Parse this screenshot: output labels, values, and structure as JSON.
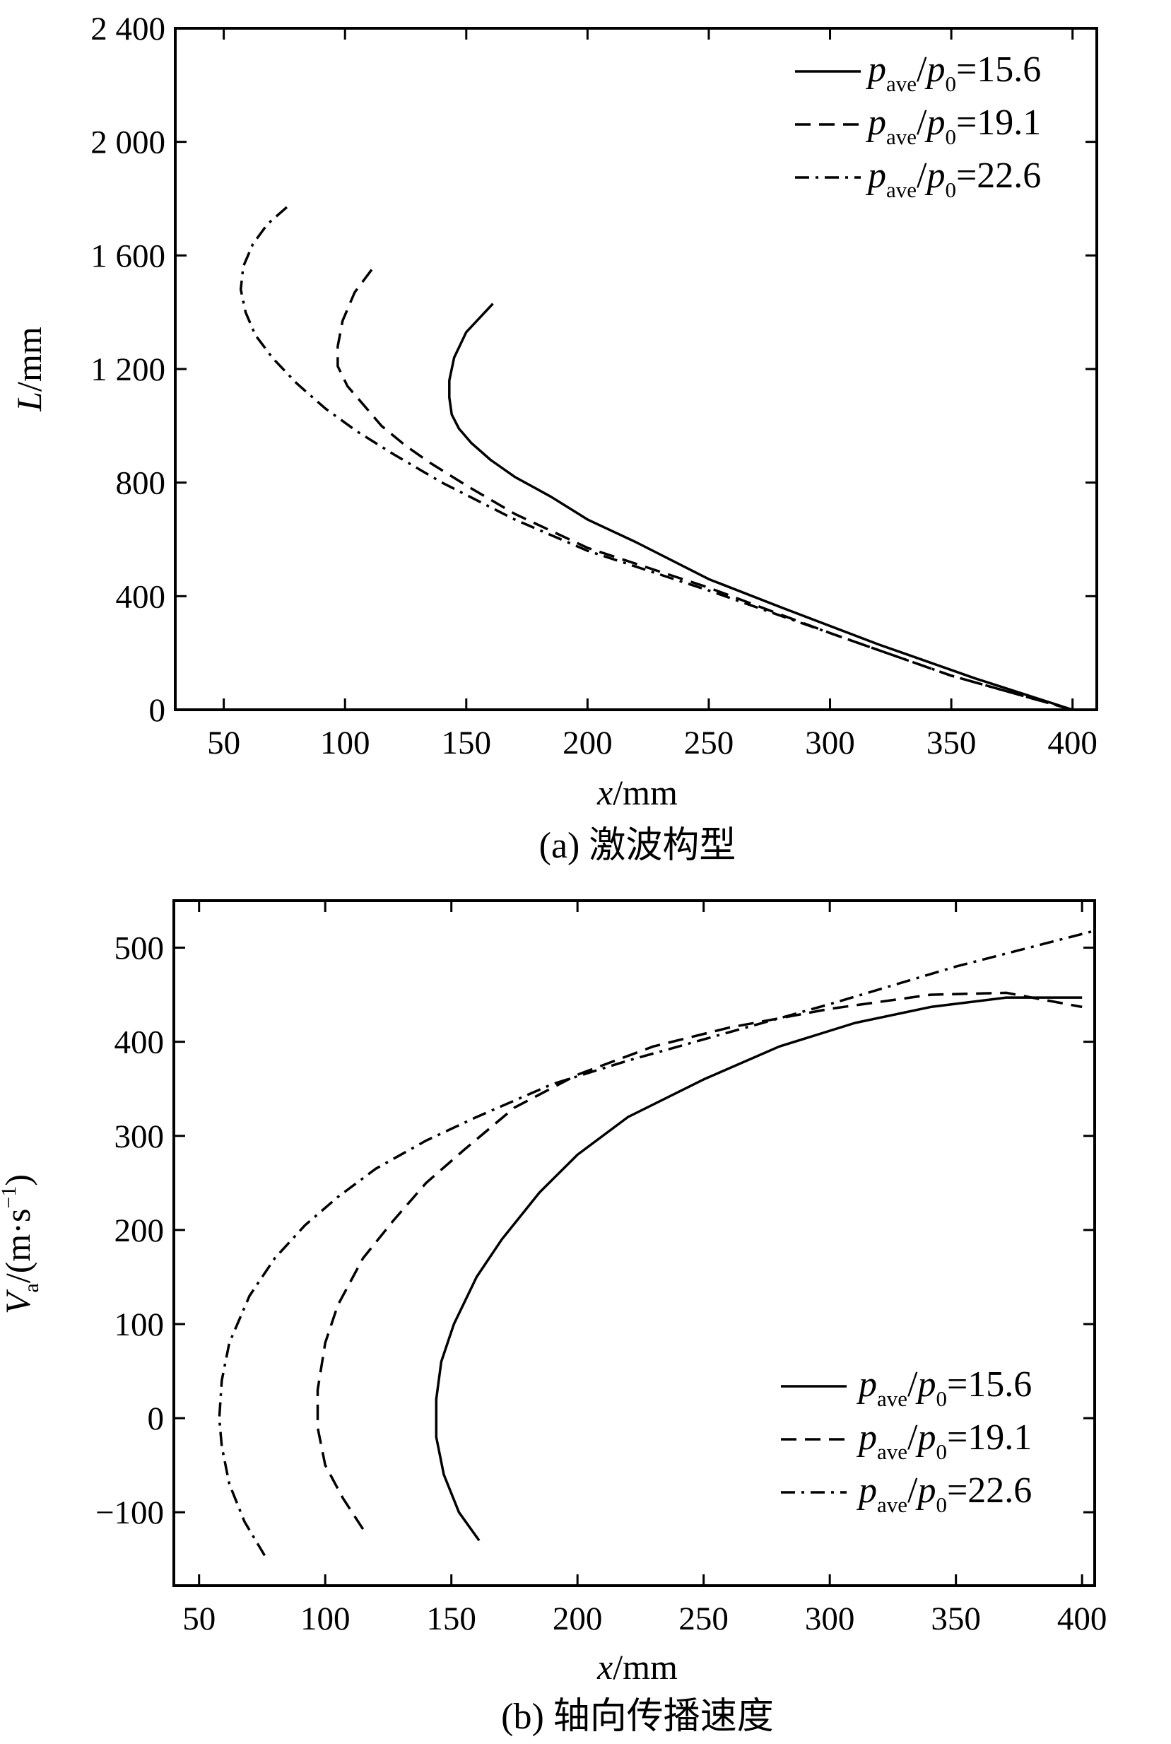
{
  "chart_data": [
    {
      "id": "a",
      "type": "line",
      "caption": "(a) 激波构型",
      "xlabel": "x/mm",
      "ylabel": "L/mm",
      "xlim": [
        30,
        410
      ],
      "ylim": [
        0,
        2400
      ],
      "x_ticks": [
        50,
        100,
        150,
        200,
        250,
        300,
        350,
        400
      ],
      "y_ticks": [
        0,
        400,
        800,
        1200,
        1600,
        2000,
        2400
      ],
      "y_tick_labels": [
        "0",
        "400",
        "800",
        "1 200",
        "1 600",
        "2 000",
        "2 400"
      ],
      "legend_position": "top-right",
      "series": [
        {
          "name": "p_ave/p_0=15.6",
          "label_parts": {
            "p1": "p",
            "sub1": "ave",
            "slash": "/",
            "p2": "p",
            "sub2": "0",
            "value": "=15.6"
          },
          "style": "solid",
          "points": [
            [
              161,
              1430
            ],
            [
              150,
              1330
            ],
            [
              145,
              1240
            ],
            [
              143,
              1160
            ],
            [
              143,
              1100
            ],
            [
              144,
              1040
            ],
            [
              147,
              990
            ],
            [
              152,
              940
            ],
            [
              160,
              880
            ],
            [
              170,
              820
            ],
            [
              185,
              750
            ],
            [
              200,
              670
            ],
            [
              220,
              590
            ],
            [
              250,
              460
            ],
            [
              280,
              360
            ],
            [
              320,
              230
            ],
            [
              360,
              110
            ],
            [
              400,
              0
            ]
          ]
        },
        {
          "name": "p_ave/p_0=19.1",
          "label_parts": {
            "p1": "p",
            "sub1": "ave",
            "slash": "/",
            "p2": "p",
            "sub2": "0",
            "value": "=19.1"
          },
          "style": "dashed",
          "points": [
            [
              111,
              1550
            ],
            [
              104,
              1470
            ],
            [
              99,
              1370
            ],
            [
              97,
              1280
            ],
            [
              97,
              1210
            ],
            [
              101,
              1140
            ],
            [
              108,
              1070
            ],
            [
              115,
              1000
            ],
            [
              125,
              930
            ],
            [
              135,
              870
            ],
            [
              150,
              790
            ],
            [
              170,
              690
            ],
            [
              200,
              570
            ],
            [
              250,
              430
            ],
            [
              300,
              270
            ],
            [
              350,
              120
            ],
            [
              400,
              0
            ]
          ]
        },
        {
          "name": "p_ave/p_0=22.6",
          "label_parts": {
            "p1": "p",
            "sub1": "ave",
            "slash": "/",
            "p2": "p",
            "sub2": "0",
            "value": "=22.6"
          },
          "style": "dashdot",
          "points": [
            [
              76,
              1770
            ],
            [
              68,
              1710
            ],
            [
              62,
              1640
            ],
            [
              58,
              1560
            ],
            [
              57,
              1480
            ],
            [
              59,
              1400
            ],
            [
              63,
              1320
            ],
            [
              70,
              1240
            ],
            [
              80,
              1150
            ],
            [
              92,
              1060
            ],
            [
              105,
              980
            ],
            [
              120,
              900
            ],
            [
              140,
              800
            ],
            [
              170,
              670
            ],
            [
              200,
              560
            ],
            [
              250,
              420
            ],
            [
              300,
              270
            ],
            [
              350,
              120
            ],
            [
              400,
              0
            ]
          ]
        }
      ]
    },
    {
      "id": "b",
      "type": "line",
      "caption": "(b) 轴向传播速度",
      "xlabel": "x/mm",
      "ylabel": "V_a/(m·s^-1)",
      "ylabel_parts": {
        "v": "V",
        "sub": "a",
        "unit": "/(m·s",
        "sup": "−1",
        "close": ")"
      },
      "xlim": [
        40,
        405
      ],
      "ylim": [
        -178,
        550
      ],
      "x_ticks": [
        50,
        100,
        150,
        200,
        250,
        300,
        350,
        400
      ],
      "y_ticks": [
        -100,
        0,
        100,
        200,
        300,
        400,
        500
      ],
      "y_tick_labels": [
        "−100",
        "0",
        "100",
        "200",
        "300",
        "400",
        "500"
      ],
      "legend_position": "bottom-right",
      "series": [
        {
          "name": "p_ave/p_0=15.6",
          "label_parts": {
            "p1": "p",
            "sub1": "ave",
            "slash": "/",
            "p2": "p",
            "sub2": "0",
            "value": "=15.6"
          },
          "style": "solid",
          "points": [
            [
              161,
              -130
            ],
            [
              153,
              -100
            ],
            [
              147,
              -60
            ],
            [
              144,
              -20
            ],
            [
              144,
              20
            ],
            [
              146,
              60
            ],
            [
              151,
              100
            ],
            [
              160,
              150
            ],
            [
              170,
              190
            ],
            [
              185,
              240
            ],
            [
              200,
              280
            ],
            [
              220,
              320
            ],
            [
              250,
              360
            ],
            [
              280,
              395
            ],
            [
              310,
              420
            ],
            [
              340,
              437
            ],
            [
              370,
              447
            ],
            [
              400,
              447
            ]
          ]
        },
        {
          "name": "p_ave/p_0=19.1",
          "label_parts": {
            "p1": "p",
            "sub1": "ave",
            "slash": "/",
            "p2": "p",
            "sub2": "0",
            "value": "=19.1"
          },
          "style": "dashed",
          "points": [
            [
              115,
              -118
            ],
            [
              107,
              -85
            ],
            [
              100,
              -50
            ],
            [
              97,
              -10
            ],
            [
              97,
              30
            ],
            [
              100,
              80
            ],
            [
              105,
              120
            ],
            [
              115,
              170
            ],
            [
              127,
              210
            ],
            [
              140,
              250
            ],
            [
              155,
              285
            ],
            [
              175,
              330
            ],
            [
              200,
              365
            ],
            [
              230,
              395
            ],
            [
              260,
              415
            ],
            [
              300,
              435
            ],
            [
              340,
              450
            ],
            [
              370,
              452
            ],
            [
              400,
              437
            ]
          ]
        },
        {
          "name": "p_ave/p_0=22.6",
          "label_parts": {
            "p1": "p",
            "sub1": "ave",
            "slash": "/",
            "p2": "p",
            "sub2": "0",
            "value": "=22.6"
          },
          "style": "dashdot",
          "points": [
            [
              76,
              -146
            ],
            [
              68,
              -110
            ],
            [
              62,
              -70
            ],
            [
              59,
              -30
            ],
            [
              58,
              0
            ],
            [
              59,
              40
            ],
            [
              62,
              80
            ],
            [
              70,
              130
            ],
            [
              80,
              170
            ],
            [
              92,
              205
            ],
            [
              105,
              235
            ],
            [
              120,
              265
            ],
            [
              140,
              295
            ],
            [
              160,
              320
            ],
            [
              190,
              355
            ],
            [
              220,
              380
            ],
            [
              260,
              410
            ],
            [
              300,
              440
            ],
            [
              350,
              480
            ],
            [
              405,
              518
            ]
          ]
        }
      ]
    }
  ]
}
